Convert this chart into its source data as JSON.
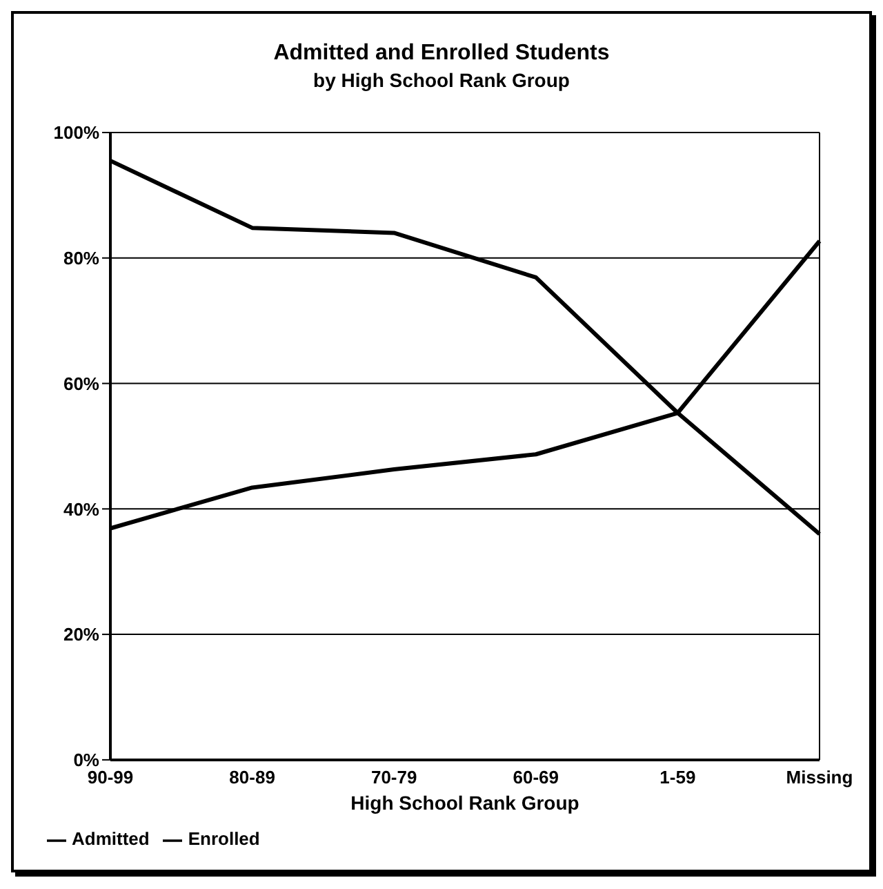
{
  "chart_data": {
    "type": "line",
    "title": "Admitted and Enrolled Students",
    "subtitle": "by High School Rank Group",
    "xlabel": "High School Rank Group",
    "categories": [
      "90-99",
      "80-89",
      "70-79",
      "60-69",
      "1-59",
      "Missing"
    ],
    "series": [
      {
        "name": "Admitted",
        "color": "#000000",
        "values": [
          95.5,
          84.8,
          84,
          76.9,
          55.3,
          36
        ]
      },
      {
        "name": "Enrolled",
        "color": "#000000",
        "values": [
          36.9,
          43.4,
          46.3,
          48.7,
          55.3,
          82.7
        ]
      }
    ],
    "ylim": [
      0,
      100
    ],
    "yticks": [
      {
        "value": 0,
        "label": "0%"
      },
      {
        "value": 20,
        "label": "20%"
      },
      {
        "value": 40,
        "label": "40%"
      },
      {
        "value": 60,
        "label": "60%"
      },
      {
        "value": 80,
        "label": "80%"
      },
      {
        "value": 100,
        "label": "100%"
      }
    ],
    "grid": "y",
    "legend": "bottom left",
    "marker": "none",
    "line_style": "solid"
  }
}
